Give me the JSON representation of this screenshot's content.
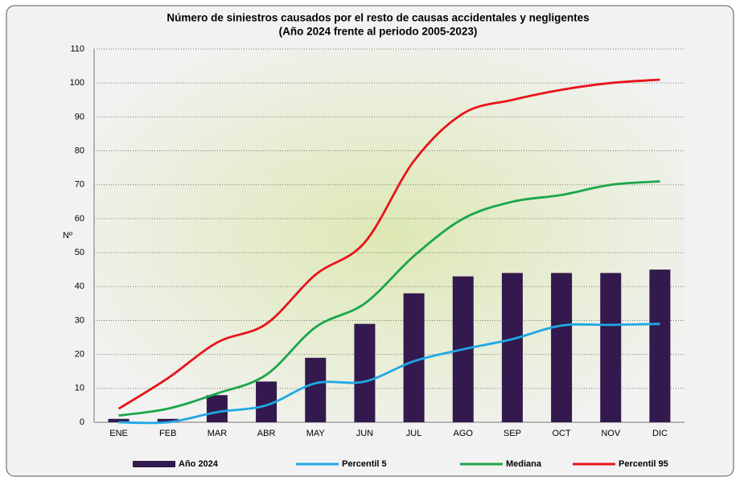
{
  "chart_data": {
    "type": "combo",
    "title": "Número de siniestros causados por el resto de causas accidentales y negligentes",
    "subtitle": "(Año 2024 frente al periodo 2005-2023)",
    "y_label": "Nº",
    "categories": [
      "ENE",
      "FEB",
      "MAR",
      "ABR",
      "MAY",
      "JUN",
      "JUL",
      "AGO",
      "SEP",
      "OCT",
      "NOV",
      "DIC"
    ],
    "series": [
      {
        "name": "Año 2024",
        "type": "bar",
        "color": "#33194d",
        "values": [
          1,
          1,
          8,
          12,
          19,
          29,
          38,
          43,
          44,
          44,
          44,
          45
        ]
      },
      {
        "name": "Percentil 5",
        "type": "line",
        "color": "#1fa8e6",
        "values": [
          0,
          0,
          3,
          5,
          11.5,
          12,
          18,
          21.5,
          24.5,
          28.5,
          28.7,
          29
        ]
      },
      {
        "name": "Mediana",
        "type": "line",
        "color": "#1aa64a",
        "values": [
          2,
          4,
          8.5,
          14,
          28,
          35,
          49,
          60,
          65,
          67,
          70,
          71
        ]
      },
      {
        "name": "Percentil 95",
        "type": "line",
        "color": "#e8141b",
        "values": [
          4,
          13,
          23.5,
          29,
          43.5,
          53,
          77,
          91,
          95,
          98,
          100,
          101
        ]
      }
    ],
    "ylim": [
      0,
      110
    ],
    "yticks": [
      0,
      10,
      20,
      30,
      40,
      50,
      60,
      70,
      80,
      90,
      100,
      110
    ],
    "grid": true,
    "legend": "bottom"
  }
}
